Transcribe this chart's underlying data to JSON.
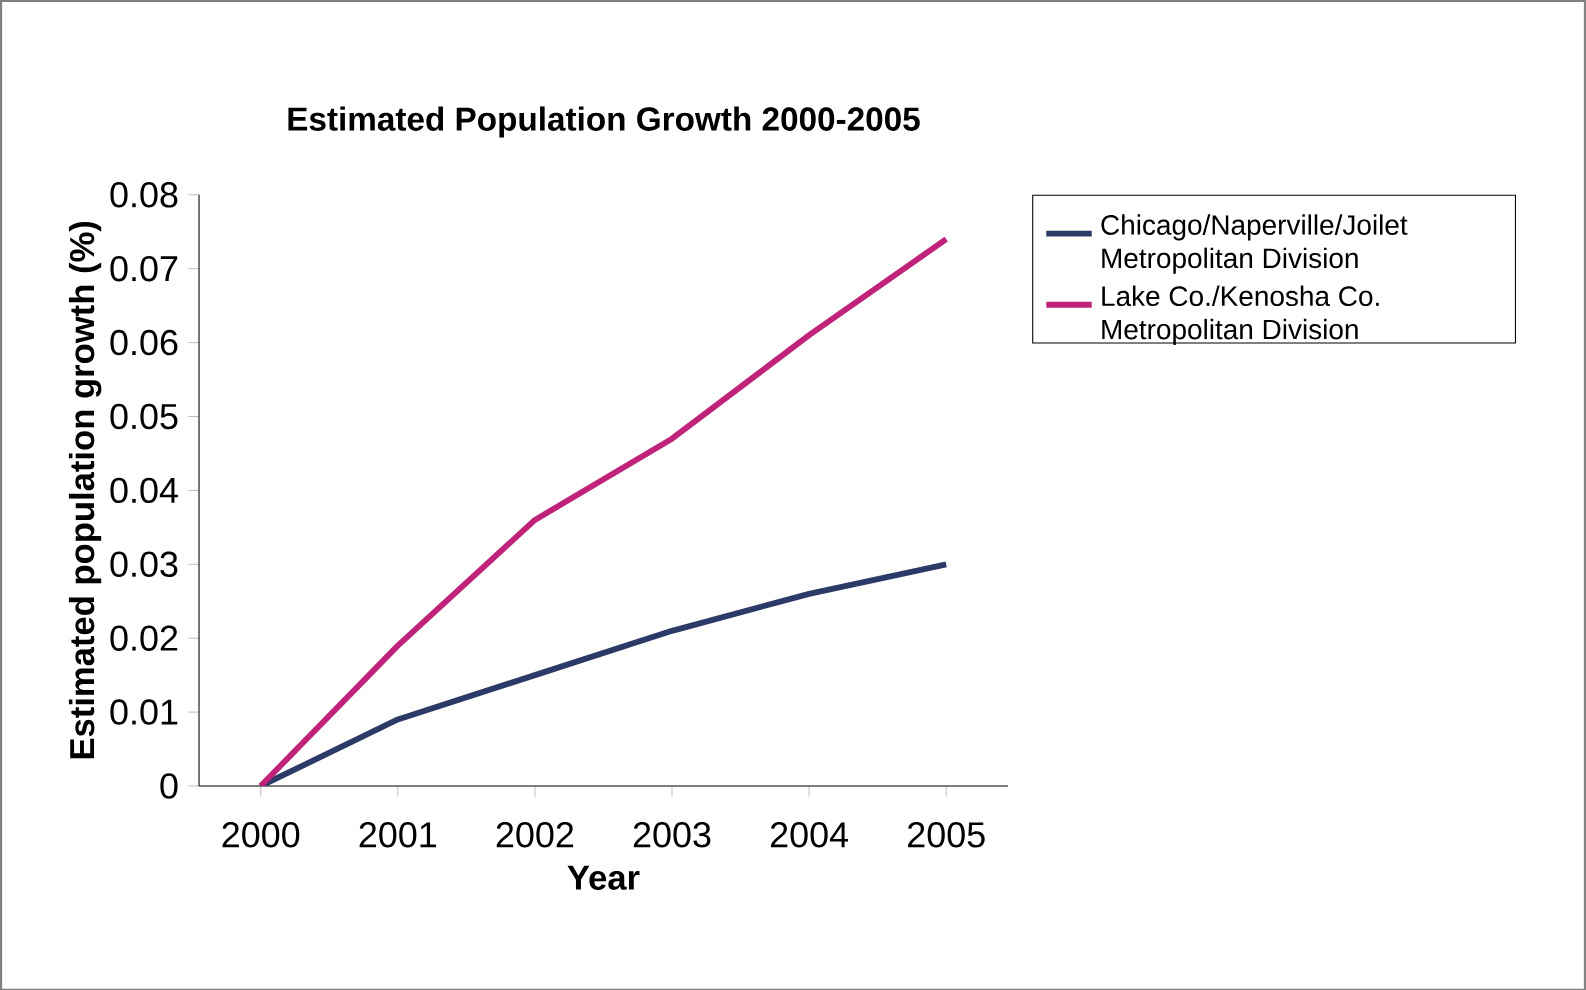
{
  "chart_data": {
    "type": "line",
    "title": "Estimated Population Growth 2000-2005",
    "xlabel": "Year",
    "ylabel": "Estimated population growth (%)",
    "categories": [
      "2000",
      "2001",
      "2002",
      "2003",
      "2004",
      "2005"
    ],
    "series": [
      {
        "name": "Chicago/Naperville/Joilet Metropolitan Division",
        "color": "#2b3a67",
        "values": [
          0,
          0.009,
          0.015,
          0.021,
          0.026,
          0.03
        ]
      },
      {
        "name": "Lake Co./Kenosha Co. Metropolitan Division",
        "color": "#c0237a",
        "values": [
          0,
          0.019,
          0.036,
          0.047,
          0.061,
          0.074
        ]
      }
    ],
    "ylim": [
      0,
      0.08
    ],
    "yticks": [
      0,
      0.01,
      0.02,
      0.03,
      0.04,
      0.05,
      0.06,
      0.07,
      0.08
    ],
    "grid": false,
    "legend": "right",
    "marker": "none",
    "line_style": "solid"
  }
}
